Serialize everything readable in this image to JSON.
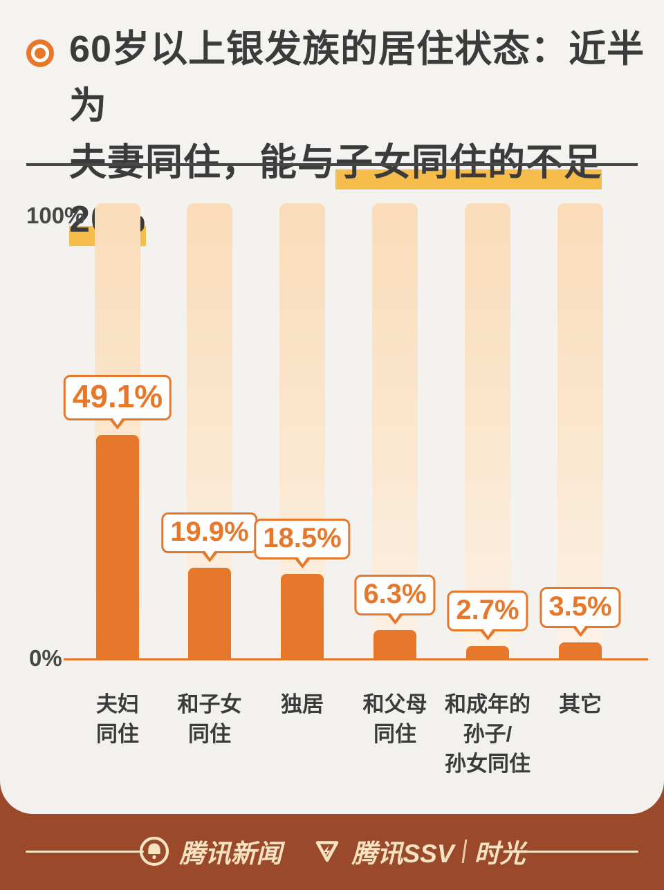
{
  "header": {
    "title_line1": "60岁以上银发族的居住状态：近半为",
    "title_line2_prefix": "夫妻同住，能与",
    "title_line2_highlight": "子女同住的不足20%"
  },
  "chart_data": {
    "type": "bar",
    "title": "60岁以上银发族的居住状态",
    "categories": [
      "夫妇同住",
      "和子女同住",
      "独居",
      "和父母同住",
      "和成年的孙子/孙女同住",
      "其它"
    ],
    "categories_lines": [
      [
        "夫妇",
        "同住"
      ],
      [
        "和子女",
        "同住"
      ],
      [
        "独居"
      ],
      [
        "和父母",
        "同住"
      ],
      [
        "和成年的",
        "孙子/",
        "孙女同住"
      ],
      [
        "其它"
      ]
    ],
    "values": [
      49.1,
      19.9,
      18.5,
      6.3,
      2.7,
      3.5
    ],
    "value_labels": [
      "49.1%",
      "19.9%",
      "18.5%",
      "6.3%",
      "2.7%",
      "3.5%"
    ],
    "ylim": [
      0,
      100
    ],
    "ytick_top": "100%",
    "ytick_bottom": "0%",
    "grid": false,
    "legend": false,
    "bar_color": "#E7772A",
    "bar_track_color": "#FBE2C3"
  },
  "footer": {
    "news_label": "腾讯新闻",
    "ssv_label": "腾讯SSV",
    "separator": "|",
    "shiguang_label": "时光"
  },
  "colors": {
    "accent_orange": "#E7772A",
    "highlight_yellow": "#F6BD4D",
    "footer_brown": "#9A4A2B",
    "footer_cream": "#F6E3C1",
    "text_dark": "#3B3B3B",
    "paper": "#F4F2EE"
  }
}
